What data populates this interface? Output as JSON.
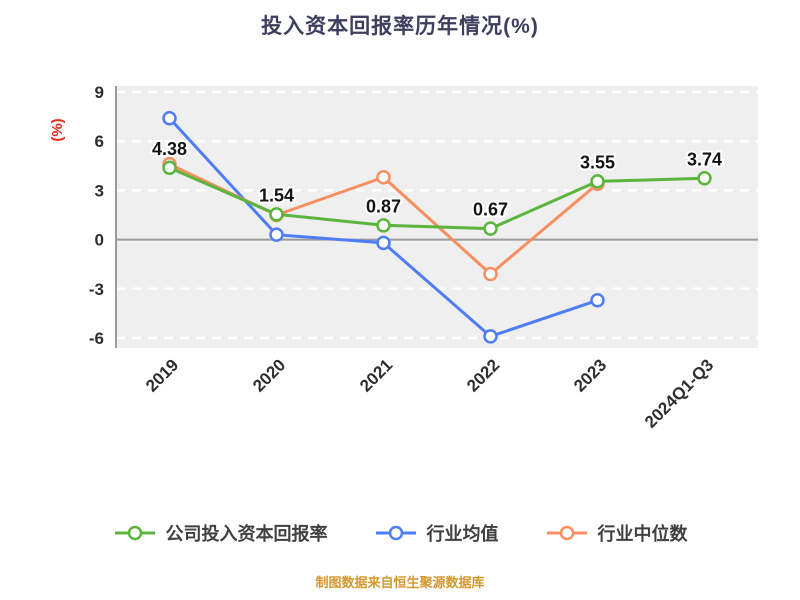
{
  "title": "投入资本回报率历年情况(%)",
  "y_axis_label": "(%)",
  "source_caption": "制图数据来自恒生聚源数据库",
  "colors": {
    "title": "#3e3e5e",
    "y_axis_label": "#e02a1c",
    "tick_text": "#2e2e2e",
    "panel": "#efefef",
    "grid_dash": "#ffffff",
    "axis_line": "#9b9b9b",
    "point_label": "#141414",
    "legend_text": "#404040",
    "caption": "#d4972e"
  },
  "chart_data": {
    "type": "line",
    "title": "投入资本回报率历年情况(%)",
    "categories": [
      "2019",
      "2020",
      "2021",
      "2022",
      "2023",
      "2024Q1-Q3"
    ],
    "y_ticks": [
      9,
      6,
      3,
      0,
      -3,
      -6
    ],
    "ylim": [
      -6,
      9
    ],
    "grid": true,
    "legend_position": "bottom",
    "series": [
      {
        "name": "公司投入资本回报率",
        "color": "#5bb53c",
        "values": [
          4.38,
          1.54,
          0.87,
          0.67,
          3.55,
          3.74
        ],
        "point_labels": [
          "4.38",
          "1.54",
          "0.87",
          "0.67",
          "3.55",
          "3.74"
        ]
      },
      {
        "name": "行业均值",
        "color": "#4f7df5",
        "values": [
          7.4,
          0.3,
          -0.2,
          -5.9,
          -3.7,
          null
        ]
      },
      {
        "name": "行业中位数",
        "color": "#f78f61",
        "values": [
          4.6,
          1.5,
          3.8,
          -2.1,
          3.4,
          null
        ]
      }
    ]
  }
}
